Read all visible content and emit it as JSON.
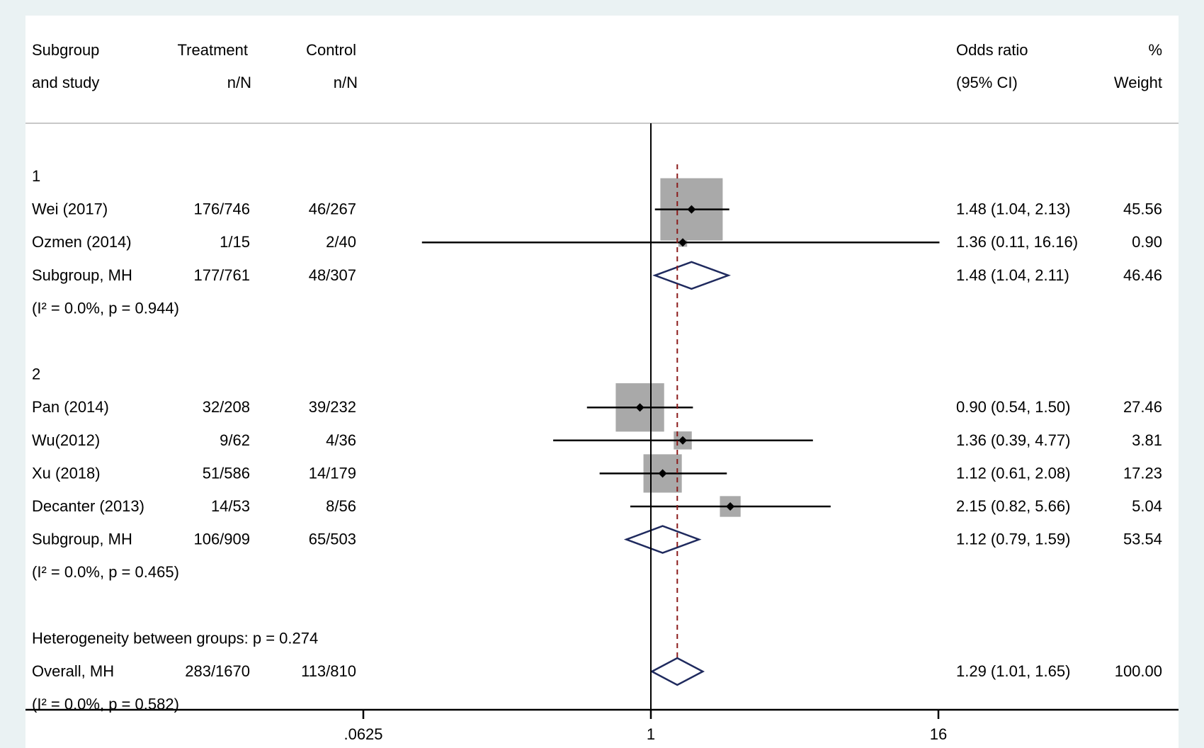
{
  "header": {
    "subgroup_line1": "Subgroup",
    "subgroup_line2": "and study",
    "treatment_line1": "Treatment",
    "treatment_line2": "n/N",
    "control_line1": "Control",
    "control_line2": "n/N",
    "or_line1": "Odds ratio",
    "or_line2": "(95% CI)",
    "weight_line1": "%",
    "weight_line2": "Weight"
  },
  "colors": {
    "background": "#eaf2f3",
    "panel": "#ffffff",
    "weight_box": "#a9a9a9",
    "diamond": "#1f2a5e",
    "overall_line": "#8b1a1a",
    "line": "#000000"
  },
  "chart_data": {
    "type": "forest",
    "scale": "log2",
    "xlim": [
      0.0312,
      32
    ],
    "null_value": 1,
    "overall_effect": 1.29,
    "ticks": [
      {
        "value": 0.0625,
        "label": ".0625"
      },
      {
        "value": 1,
        "label": "1"
      },
      {
        "value": 16,
        "label": "16"
      }
    ],
    "rows": [
      {
        "kind": "group",
        "label": "1"
      },
      {
        "kind": "study",
        "label": "Wei (2017)",
        "treatment": "176/746",
        "control": "46/267",
        "or": 1.48,
        "lo": 1.04,
        "hi": 2.13,
        "ci_text": "1.48 (1.04, 2.13)",
        "weight": 45.56,
        "weight_text": "45.56"
      },
      {
        "kind": "study",
        "label": "Ozmen (2014)",
        "treatment": "1/15",
        "control": "2/40",
        "or": 1.36,
        "lo": 0.11,
        "hi": 16.16,
        "ci_text": "1.36 (0.11, 16.16)",
        "weight": 0.9,
        "weight_text": "0.90"
      },
      {
        "kind": "subtotal",
        "label": "Subgroup, MH",
        "treatment": "177/761",
        "control": "48/307",
        "or": 1.48,
        "lo": 1.04,
        "hi": 2.11,
        "ci_text": "1.48 (1.04, 2.11)",
        "weight_text": "46.46"
      },
      {
        "kind": "het",
        "label": "(I² = 0.0%, p = 0.944)"
      },
      {
        "kind": "blank"
      },
      {
        "kind": "group",
        "label": "2"
      },
      {
        "kind": "study",
        "label": "Pan (2014)",
        "treatment": "32/208",
        "control": "39/232",
        "or": 0.9,
        "lo": 0.54,
        "hi": 1.5,
        "ci_text": "0.90 (0.54, 1.50)",
        "weight": 27.46,
        "weight_text": "27.46"
      },
      {
        "kind": "study",
        "label": "Wu(2012)",
        "treatment": "9/62",
        "control": "4/36",
        "or": 1.36,
        "lo": 0.39,
        "hi": 4.77,
        "ci_text": "1.36 (0.39, 4.77)",
        "weight": 3.81,
        "weight_text": "3.81"
      },
      {
        "kind": "study",
        "label": "Xu (2018)",
        "treatment": "51/586",
        "control": "14/179",
        "or": 1.12,
        "lo": 0.61,
        "hi": 2.08,
        "ci_text": "1.12 (0.61, 2.08)",
        "weight": 17.23,
        "weight_text": "17.23"
      },
      {
        "kind": "study",
        "label": "Decanter (2013)",
        "treatment": "14/53",
        "control": "8/56",
        "or": 2.15,
        "lo": 0.82,
        "hi": 5.66,
        "ci_text": "2.15 (0.82, 5.66)",
        "weight": 5.04,
        "weight_text": "5.04"
      },
      {
        "kind": "subtotal",
        "label": "Subgroup, MH",
        "treatment": "106/909",
        "control": "65/503",
        "or": 1.12,
        "lo": 0.79,
        "hi": 1.59,
        "ci_text": "1.12 (0.79, 1.59)",
        "weight_text": "53.54"
      },
      {
        "kind": "het",
        "label": "(I² = 0.0%, p = 0.465)"
      },
      {
        "kind": "blank"
      },
      {
        "kind": "note",
        "label": "Heterogeneity between groups: p = 0.274"
      },
      {
        "kind": "subtotal",
        "label": "Overall, MH",
        "treatment": "283/1670",
        "control": "113/810",
        "or": 1.29,
        "lo": 1.01,
        "hi": 1.65,
        "ci_text": "1.29 (1.01, 1.65)",
        "weight_text": "100.00"
      },
      {
        "kind": "het",
        "label": "(I² = 0.0%, p = 0.582)"
      }
    ]
  }
}
